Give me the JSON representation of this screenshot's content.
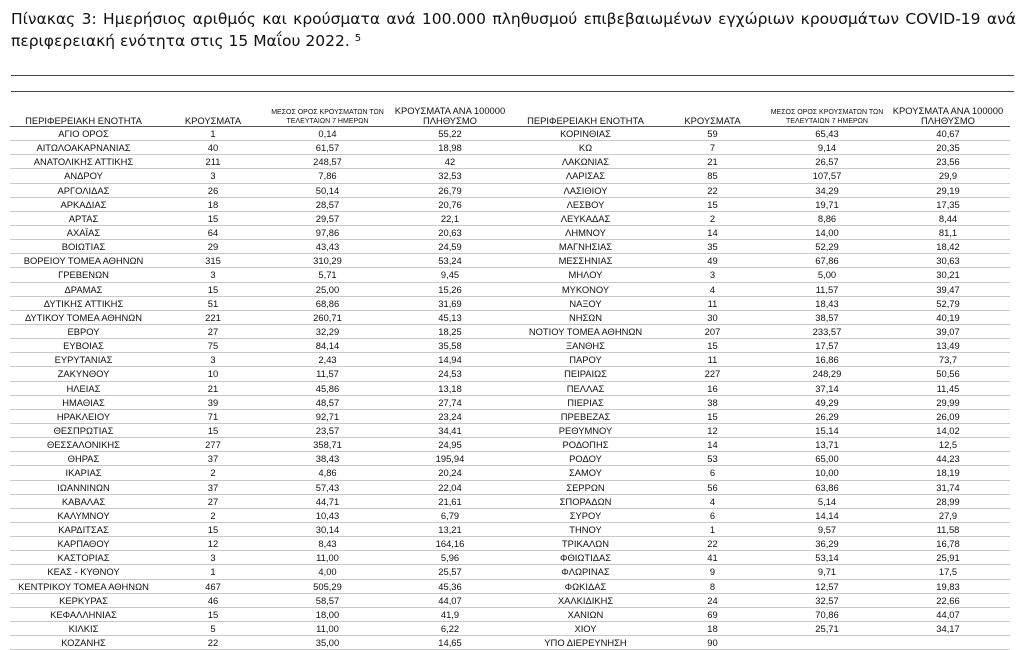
{
  "title": {
    "text": "Πίνακας 3:  Ημερήσιος αριθμός και κρούσματα ανά 100.000 πληθυσμού επιβεβαιωμένων εγχώριων κρουσμάτων COVID-19 ανά περιφερειακή ενότητα στις 15 Μαΐου 2022.",
    "footnote": "5"
  },
  "headers": {
    "region": "ΠΕΡΙΦΕΡΕΙΑΚΗ ΕΝΟΤΗΤΑ",
    "cases": "ΚΡΟΥΣΜΑΤΑ",
    "avg7": "ΜΕΣΟΣ ΟΡΟΣ ΚΡΟΥΣΜΑΤΩΝ ΤΩΝ ΤΕΛΕΥΤΑΙΩΝ 7 ΗΜΕΡΩΝ",
    "per100k": "ΚΡΟΥΣΜΑΤΑ ΑΝΑ 100000 ΠΛΗΘΥΣΜΟ"
  },
  "left_rows": [
    [
      "ΑΓΙΟ ΟΡΟΣ",
      "1",
      "0,14",
      "55,22"
    ],
    [
      "ΑΙΤΩΛΟΑΚΑΡΝΑΝΙΑΣ",
      "40",
      "61,57",
      "18,98"
    ],
    [
      "ΑΝΑΤΟΛΙΚΗΣ ΑΤΤΙΚΗΣ",
      "211",
      "248,57",
      "42"
    ],
    [
      "ΑΝΔΡΟΥ",
      "3",
      "7,86",
      "32,53"
    ],
    [
      "ΑΡΓΟΛΙΔΑΣ",
      "26",
      "50,14",
      "26,79"
    ],
    [
      "ΑΡΚΑΔΙΑΣ",
      "18",
      "28,57",
      "20,76"
    ],
    [
      "ΑΡΤΑΣ",
      "15",
      "29,57",
      "22,1"
    ],
    [
      "ΑΧΑΪΑΣ",
      "64",
      "97,86",
      "20,63"
    ],
    [
      "ΒΟΙΩΤΙΑΣ",
      "29",
      "43,43",
      "24,59"
    ],
    [
      "ΒΟΡΕΙΟΥ ΤΟΜΕΑ ΑΘΗΝΩΝ",
      "315",
      "310,29",
      "53,24"
    ],
    [
      "ΓΡΕΒΕΝΩΝ",
      "3",
      "5,71",
      "9,45"
    ],
    [
      "ΔΡΑΜΑΣ",
      "15",
      "25,00",
      "15,26"
    ],
    [
      "ΔΥΤΙΚΗΣ ΑΤΤΙΚΗΣ",
      "51",
      "68,86",
      "31,69"
    ],
    [
      "ΔΥΤΙΚΟΥ ΤΟΜΕΑ ΑΘΗΝΩΝ",
      "221",
      "260,71",
      "45,13"
    ],
    [
      "ΕΒΡΟΥ",
      "27",
      "32,29",
      "18,25"
    ],
    [
      "ΕΥΒΟΙΑΣ",
      "75",
      "84,14",
      "35,58"
    ],
    [
      "ΕΥΡΥΤΑΝΙΑΣ",
      "3",
      "2,43",
      "14,94"
    ],
    [
      "ΖΑΚΥΝΘΟΥ",
      "10",
      "11,57",
      "24,53"
    ],
    [
      "ΗΛΕΙΑΣ",
      "21",
      "45,86",
      "13,18"
    ],
    [
      "ΗΜΑΘΙΑΣ",
      "39",
      "48,57",
      "27,74"
    ],
    [
      "ΗΡΑΚΛΕΙΟΥ",
      "71",
      "92,71",
      "23,24"
    ],
    [
      "ΘΕΣΠΡΩΤΙΑΣ",
      "15",
      "23,57",
      "34,41"
    ],
    [
      "ΘΕΣΣΑΛΟΝΙΚΗΣ",
      "277",
      "358,71",
      "24,95"
    ],
    [
      "ΘΗΡΑΣ",
      "37",
      "38,43",
      "195,94"
    ],
    [
      "ΙΚΑΡΙΑΣ",
      "2",
      "4,86",
      "20,24"
    ],
    [
      "ΙΩΑΝΝΙΝΩΝ",
      "37",
      "57,43",
      "22,04"
    ],
    [
      "ΚΑΒΑΛΑΣ",
      "27",
      "44,71",
      "21,61"
    ],
    [
      "ΚΑΛΥΜΝΟΥ",
      "2",
      "10,43",
      "6,79"
    ],
    [
      "ΚΑΡΔΙΤΣΑΣ",
      "15",
      "30,14",
      "13,21"
    ],
    [
      "ΚΑΡΠΑΘΟΥ",
      "12",
      "8,43",
      "164,16"
    ],
    [
      "ΚΑΣΤΟΡΙΑΣ",
      "3",
      "11,00",
      "5,96"
    ],
    [
      "ΚΕΑΣ - ΚΥΘΝΟΥ",
      "1",
      "4,00",
      "25,57"
    ],
    [
      "ΚΕΝΤΡΙΚΟΥ ΤΟΜΕΑ ΑΘΗΝΩΝ",
      "467",
      "505,29",
      "45,36"
    ],
    [
      "ΚΕΡΚΥΡΑΣ",
      "46",
      "58,57",
      "44,07"
    ],
    [
      "ΚΕΦΑΛΛΗΝΙΑΣ",
      "15",
      "18,00",
      "41,9"
    ],
    [
      "ΚΙΛΚΙΣ",
      "5",
      "11,00",
      "6,22"
    ],
    [
      "ΚΟΖΑΝΗΣ",
      "22",
      "35,00",
      "14,65"
    ]
  ],
  "right_rows": [
    [
      "ΚΟΡΙΝΘΙΑΣ",
      "59",
      "65,43",
      "40,67"
    ],
    [
      "ΚΩ",
      "7",
      "9,14",
      "20,35"
    ],
    [
      "ΛΑΚΩΝΙΑΣ",
      "21",
      "26,57",
      "23,56"
    ],
    [
      "ΛΑΡΙΣΑΣ",
      "85",
      "107,57",
      "29,9"
    ],
    [
      "ΛΑΣΙΘΙΟΥ",
      "22",
      "34,29",
      "29,19"
    ],
    [
      "ΛΕΣΒΟΥ",
      "15",
      "19,71",
      "17,35"
    ],
    [
      "ΛΕΥΚΑΔΑΣ",
      "2",
      "8,86",
      "8,44"
    ],
    [
      "ΛΗΜΝΟΥ",
      "14",
      "14,00",
      "81,1"
    ],
    [
      "ΜΑΓΝΗΣΙΑΣ",
      "35",
      "52,29",
      "18,42"
    ],
    [
      "ΜΕΣΣΗΝΙΑΣ",
      "49",
      "67,86",
      "30,63"
    ],
    [
      "ΜΗΛΟΥ",
      "3",
      "5,00",
      "30,21"
    ],
    [
      "ΜΥΚΟΝΟΥ",
      "4",
      "11,57",
      "39,47"
    ],
    [
      "ΝΑΞΟΥ",
      "11",
      "18,43",
      "52,79"
    ],
    [
      "ΝΗΣΩΝ",
      "30",
      "38,57",
      "40,19"
    ],
    [
      "ΝΟΤΙΟΥ ΤΟΜΕΑ ΑΘΗΝΩΝ",
      "207",
      "233,57",
      "39,07"
    ],
    [
      "ΞΑΝΘΗΣ",
      "15",
      "17,57",
      "13,49"
    ],
    [
      "ΠΑΡΟΥ",
      "11",
      "16,86",
      "73,7"
    ],
    [
      "ΠΕΙΡΑΙΩΣ",
      "227",
      "248,29",
      "50,56"
    ],
    [
      "ΠΕΛΛΑΣ",
      "16",
      "37,14",
      "11,45"
    ],
    [
      "ΠΙΕΡΙΑΣ",
      "38",
      "49,29",
      "29,99"
    ],
    [
      "ΠΡΕΒΕΖΑΣ",
      "15",
      "26,29",
      "26,09"
    ],
    [
      "ΡΕΘΥΜΝΟΥ",
      "12",
      "15,14",
      "14,02"
    ],
    [
      "ΡΟΔΟΠΗΣ",
      "14",
      "13,71",
      "12,5"
    ],
    [
      "ΡΟΔΟΥ",
      "53",
      "65,00",
      "44,23"
    ],
    [
      "ΣΑΜΟΥ",
      "6",
      "10,00",
      "18,19"
    ],
    [
      "ΣΕΡΡΩΝ",
      "56",
      "63,86",
      "31,74"
    ],
    [
      "ΣΠΟΡΑΔΩΝ",
      "4",
      "5,14",
      "28,99"
    ],
    [
      "ΣΥΡΟΥ",
      "6",
      "14,14",
      "27,9"
    ],
    [
      "ΤΗΝΟΥ",
      "1",
      "9,57",
      "11,58"
    ],
    [
      "ΤΡΙΚΑΛΩΝ",
      "22",
      "36,29",
      "16,78"
    ],
    [
      "ΦΘΙΩΤΙΔΑΣ",
      "41",
      "53,14",
      "25,91"
    ],
    [
      "ΦΛΩΡΙΝΑΣ",
      "9",
      "9,71",
      "17,5"
    ],
    [
      "ΦΩΚΙΔΑΣ",
      "8",
      "12,57",
      "19,83"
    ],
    [
      "ΧΑΛΚΙΔΙΚΗΣ",
      "24",
      "32,57",
      "22,66"
    ],
    [
      "ΧΑΝΙΩΝ",
      "69",
      "70,86",
      "44,07"
    ],
    [
      "ΧΙΟΥ",
      "18",
      "25,71",
      "34,17"
    ],
    [
      "ΥΠΟ ΔΙΕΡΕΥΝΗΣΗ",
      "90",
      "",
      ""
    ]
  ]
}
